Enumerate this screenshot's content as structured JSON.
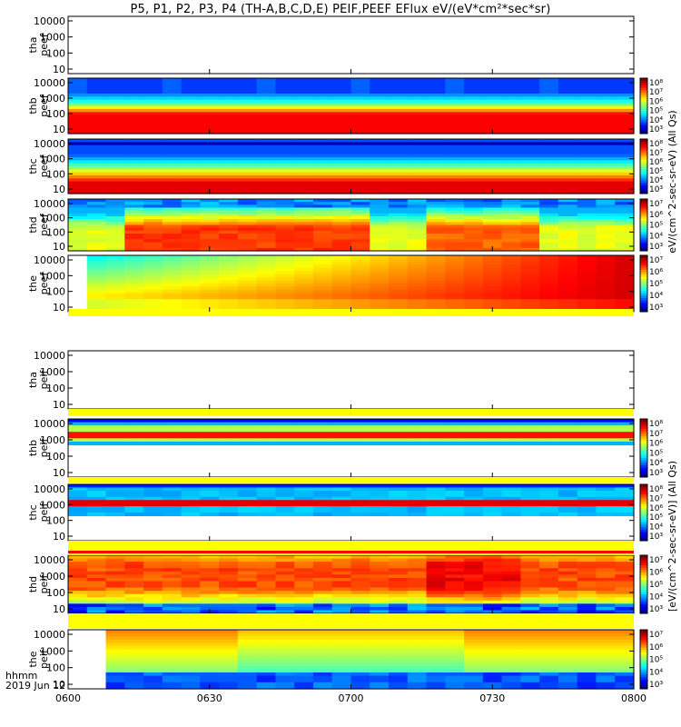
{
  "title": "P5, P1, P2, P3, P4 (TH-A,B,C,D,E) PEIF,PEEF EFlux eV/(eV*cm²*sec*sr)",
  "time_axis": {
    "row_label": "hhmm",
    "date_label": "2019 Jun 12",
    "ticks": [
      "0600",
      "0630",
      "0700",
      "0730",
      "0800"
    ]
  },
  "colorbar_units": {
    "electron": "eV/(cm^2-sec-sr-eV) (All Qs)",
    "ion": "[eV/(cm^2-sec-sr-eV)] (All Qs)"
  },
  "chart_data": [
    {
      "type": "heatmap",
      "probe": "tha",
      "species": "peef",
      "ylabel_1": "tha",
      "ylabel_2": "peef",
      "yticks": [
        "10000",
        "1000",
        "100",
        "10"
      ],
      "empty": true,
      "colorbar": false,
      "colorbar_ticks": []
    },
    {
      "type": "heatmap",
      "probe": "thb",
      "species": "peef",
      "ylabel_1": "thb",
      "ylabel_2": "peef",
      "yticks": [
        "10000",
        "1000",
        "100",
        "10"
      ],
      "empty": false,
      "colorbar": true,
      "colorbar_ticks": [
        "10⁸",
        "10⁷",
        "10⁶",
        "10⁵",
        "10⁴",
        "10³"
      ]
    },
    {
      "type": "heatmap",
      "probe": "thc",
      "species": "peef",
      "ylabel_1": "thc",
      "ylabel_2": "peef",
      "yticks": [
        "10000",
        "1000",
        "100",
        "10"
      ],
      "empty": false,
      "colorbar": true,
      "colorbar_ticks": [
        "10⁸",
        "10⁷",
        "10⁶",
        "10⁵",
        "10⁴",
        "10³"
      ]
    },
    {
      "type": "heatmap",
      "probe": "thd",
      "species": "peef",
      "ylabel_1": "thd",
      "ylabel_2": "peef",
      "yticks": [
        "10000",
        "1000",
        "100",
        "10"
      ],
      "empty": false,
      "colorbar": true,
      "colorbar_ticks": [
        "10⁷",
        "10⁶",
        "10⁵",
        "10⁴",
        "10³"
      ]
    },
    {
      "type": "heatmap",
      "probe": "the",
      "species": "peef",
      "ylabel_1": "the",
      "ylabel_2": "peef",
      "yticks": [
        "10000",
        "1000",
        "100",
        "10"
      ],
      "empty": false,
      "colorbar": true,
      "colorbar_ticks": [
        "10⁷",
        "10⁶",
        "10⁵",
        "10⁴",
        "10³"
      ]
    },
    {
      "type": "heatmap",
      "probe": "tha",
      "species": "peif",
      "ylabel_1": "tha",
      "ylabel_2": "peif",
      "yticks": [
        "10000",
        "1000",
        "100",
        "10"
      ],
      "empty": true,
      "colorbar": false,
      "colorbar_ticks": []
    },
    {
      "type": "heatmap",
      "probe": "thb",
      "species": "peif",
      "ylabel_1": "thb",
      "ylabel_2": "peif",
      "yticks": [
        "10000",
        "1000",
        "100",
        "10"
      ],
      "empty": false,
      "colorbar": true,
      "colorbar_ticks": [
        "10⁸",
        "10⁷",
        "10⁶",
        "10⁵",
        "10⁴",
        "10³"
      ]
    },
    {
      "type": "heatmap",
      "probe": "thc",
      "species": "peif",
      "ylabel_1": "thc",
      "ylabel_2": "peif",
      "yticks": [
        "10000",
        "1000",
        "100",
        "10"
      ],
      "empty": false,
      "colorbar": true,
      "colorbar_ticks": [
        "10⁸",
        "10⁷",
        "10⁶",
        "10⁵",
        "10⁴",
        "10³"
      ]
    },
    {
      "type": "heatmap",
      "probe": "thd",
      "species": "peif",
      "ylabel_1": "thd",
      "ylabel_2": "peif",
      "yticks": [
        "10000",
        "1000",
        "100",
        "10"
      ],
      "empty": false,
      "colorbar": true,
      "colorbar_ticks": [
        "10⁷",
        "10⁶",
        "10⁵",
        "10⁴",
        "10³"
      ]
    },
    {
      "type": "heatmap",
      "probe": "the",
      "species": "peif",
      "ylabel_1": "the",
      "ylabel_2": "peif",
      "yticks": [
        "10000",
        "1000",
        "100",
        "10"
      ],
      "empty": false,
      "colorbar": true,
      "colorbar_ticks": [
        "10⁷",
        "10⁶",
        "10⁵",
        "10⁴",
        "10³"
      ]
    }
  ]
}
